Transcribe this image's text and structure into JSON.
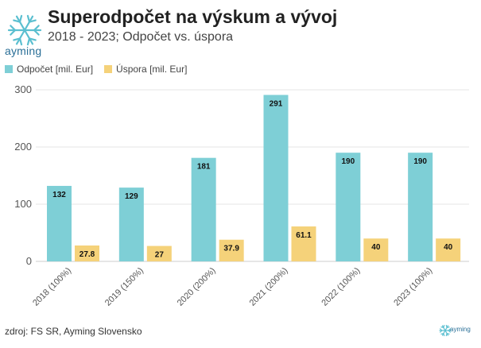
{
  "header": {
    "title": "Superodpočet na výskum a vývoj",
    "subtitle": "2018 - 2023; Odpočet vs. úspora",
    "logo_text": "ayming"
  },
  "footer": {
    "source": "zdroj: FS SR, Ayming Slovensko",
    "logo_text": "ayming"
  },
  "colors": {
    "odpocet": "#7ecfd6",
    "uspora": "#f5d27a",
    "logo": "#5bbfd0"
  },
  "chart_data": {
    "type": "bar",
    "categories": [
      "2018 (100%)",
      "2019 (150%)",
      "2020 (200%)",
      "2021 (200%)",
      "2022 (100%)",
      "2023 (100%)"
    ],
    "series": [
      {
        "name": "Odpočet [mil. Eur]",
        "values": [
          132,
          129,
          181,
          291,
          190,
          190
        ],
        "labels": [
          "132",
          "129",
          "181",
          "291",
          "190",
          "190"
        ]
      },
      {
        "name": "Úspora [mil. Eur]",
        "values": [
          27.8,
          27,
          37.9,
          61.1,
          40,
          40
        ],
        "labels": [
          "27.8",
          "27",
          "37.9",
          "61.1",
          "40",
          "40"
        ]
      }
    ],
    "yticks": [
      "0",
      "100",
      "200",
      "300"
    ],
    "ylim": [
      0,
      300
    ],
    "legend": "top-left",
    "grid": true
  }
}
